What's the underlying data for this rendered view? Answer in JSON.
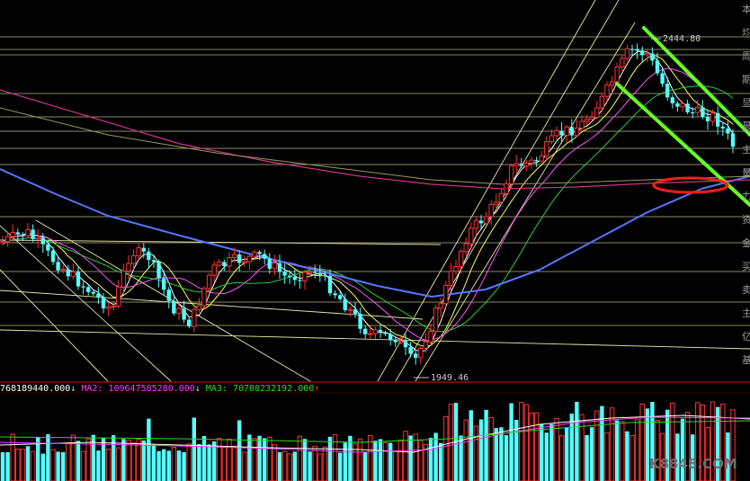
{
  "chart_data": {
    "type": "candlestick",
    "price_annotations": {
      "high": "2444.80",
      "low": "1949.46"
    },
    "volume_panel": {
      "indicators": [
        {
          "label": "768189440.000",
          "arrow": "↓",
          "color": "#ffffff"
        },
        {
          "label": "MA2:",
          "value": "109647585280.000",
          "arrow": "↓",
          "color": "#ff3cff"
        },
        {
          "label": "MA3:",
          "value": "70708232192.000",
          "arrow": "↑",
          "color": "#22dd22"
        }
      ]
    },
    "side_labels": [
      "本",
      "均",
      "周",
      "期",
      "显",
      "最",
      "主",
      "量",
      "力",
      "资",
      "金",
      "买",
      "卖",
      "主",
      "亿",
      "基"
    ],
    "watermark": "K8848.COM",
    "colors": {
      "up": "#ff3333",
      "down": "#54ffff",
      "trend": "#66ff22",
      "circle": "#ff1a1a"
    }
  }
}
